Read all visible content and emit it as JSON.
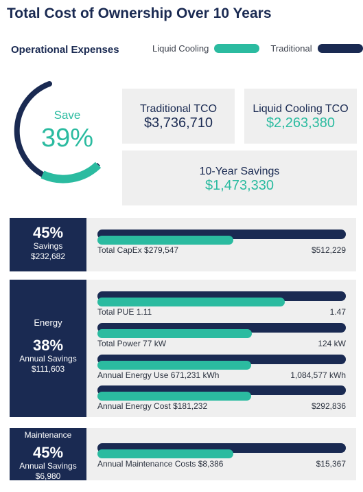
{
  "title": "Total Cost of Ownership Over 10 Years",
  "subtitle": "Operational Expenses",
  "legend": {
    "liquid": "Liquid Cooling",
    "traditional": "Traditional"
  },
  "colors": {
    "navy": "#1a2a52",
    "teal": "#2bbba0",
    "card": "#efefef"
  },
  "gauge": {
    "label": "Save",
    "value": "39%",
    "fraction": 0.39
  },
  "cards": {
    "traditional_label": "Traditional TCO",
    "traditional_value": "$3,736,710",
    "liquid_label": "Liquid Cooling TCO",
    "liquid_value": "$2,263,380",
    "savings_label": "10-Year Savings",
    "savings_value": "$1,473,330"
  },
  "capex": {
    "pct": "45%",
    "sub": "Savings",
    "amount": "$232,682"
  },
  "energy": {
    "category": "Energy",
    "pct": "38%",
    "sub": "Annual Savings",
    "amount": "$111,603"
  },
  "maintenance": {
    "category": "Maintenance",
    "pct": "45%",
    "sub": "Annual Savings",
    "amount": "$6,980"
  },
  "chart_data": {
    "type": "bar",
    "series": [
      {
        "name": "Liquid Cooling"
      },
      {
        "name": "Traditional"
      }
    ],
    "metrics": [
      {
        "label_liquid": "Total CapEx $279,547",
        "label_trad": "$512,229",
        "liquid": 279547,
        "traditional": 512229
      },
      {
        "label_liquid": "Total PUE 1.11",
        "label_trad": "1.47",
        "liquid": 1.11,
        "traditional": 1.47
      },
      {
        "label_liquid": "Total Power 77 kW",
        "label_trad": "124 kW",
        "liquid": 77,
        "traditional": 124
      },
      {
        "label_liquid": "Annual Energy Use 671,231 kWh",
        "label_trad": "1,084,577 kWh",
        "liquid": 671231,
        "traditional": 1084577
      },
      {
        "label_liquid": "Annual Energy Cost $181,232",
        "label_trad": "$292,836",
        "liquid": 181232,
        "traditional": 292836
      },
      {
        "label_liquid": "Annual Maintenance Costs $8,386",
        "label_trad": "$15,367",
        "liquid": 8386,
        "traditional": 15367
      }
    ]
  }
}
